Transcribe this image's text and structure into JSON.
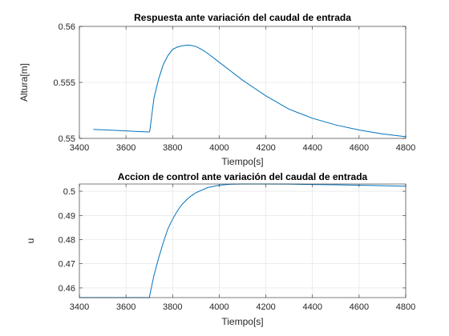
{
  "chart_data": [
    {
      "type": "line",
      "title": "Respuesta ante variación del caudal de entrada",
      "xlabel": "Tiempo[s]",
      "ylabel": "Altura[m]",
      "xlim": [
        3400,
        4800
      ],
      "ylim": [
        0.55,
        0.56
      ],
      "xticks": [
        3400,
        3600,
        3800,
        4000,
        4200,
        4400,
        4600,
        4800
      ],
      "xtick_labels": [
        "3400",
        "3600",
        "3800",
        "4000",
        "4200",
        "4400",
        "4600",
        "4800"
      ],
      "yticks": [
        0.55,
        0.555,
        0.56
      ],
      "ytick_labels": [
        "0.55",
        "0.555",
        "0.56"
      ],
      "grid": true,
      "color": "#0072bd",
      "series": [
        {
          "x": [
            3460,
            3500,
            3550,
            3600,
            3650,
            3700,
            3702,
            3720,
            3740,
            3760,
            3780,
            3800,
            3820,
            3840,
            3860,
            3870,
            3880,
            3900,
            3920,
            3950,
            4000,
            4050,
            4100,
            4150,
            4200,
            4300,
            4400,
            4500,
            4600,
            4700,
            4800
          ],
          "y": [
            0.5508,
            0.55077,
            0.55072,
            0.55067,
            0.55062,
            0.55057,
            0.55065,
            0.5536,
            0.5553,
            0.5566,
            0.5574,
            0.55795,
            0.55815,
            0.55827,
            0.55832,
            0.55832,
            0.5583,
            0.5582,
            0.558,
            0.5576,
            0.5568,
            0.556,
            0.5552,
            0.5545,
            0.5538,
            0.5526,
            0.5518,
            0.5512,
            0.55075,
            0.5504,
            0.55015
          ]
        }
      ]
    },
    {
      "type": "line",
      "title": "Accion de control ante variación del caudal de entrada",
      "xlabel": "Tiempo[s]",
      "ylabel": "u",
      "xlim": [
        3400,
        4800
      ],
      "ylim": [
        0.456,
        0.503
      ],
      "xticks": [
        3400,
        3600,
        3800,
        4000,
        4200,
        4400,
        4600,
        4800
      ],
      "xtick_labels": [
        "3400",
        "3600",
        "3800",
        "4000",
        "4200",
        "4400",
        "4600",
        "4800"
      ],
      "yticks": [
        0.46,
        0.47,
        0.48,
        0.49,
        0.5
      ],
      "ytick_labels": [
        "0.46",
        "0.47",
        "0.48",
        "0.49",
        "0.5"
      ],
      "grid": true,
      "color": "#0072bd",
      "series": [
        {
          "x": [
            3400,
            3500,
            3600,
            3700,
            3702,
            3720,
            3740,
            3760,
            3780,
            3800,
            3820,
            3840,
            3860,
            3880,
            3900,
            3950,
            4000,
            4050,
            4100,
            4150,
            4200,
            4300,
            4400,
            4500,
            4600,
            4700,
            4800
          ],
          "y": [
            0.456,
            0.456,
            0.456,
            0.456,
            0.457,
            0.4652,
            0.4724,
            0.4788,
            0.4845,
            0.4885,
            0.4918,
            0.4945,
            0.4965,
            0.4981,
            0.4994,
            0.5015,
            0.5025,
            0.5029,
            0.503,
            0.503,
            0.503,
            0.50295,
            0.5028,
            0.50265,
            0.5025,
            0.5023,
            0.5021
          ]
        }
      ]
    }
  ]
}
